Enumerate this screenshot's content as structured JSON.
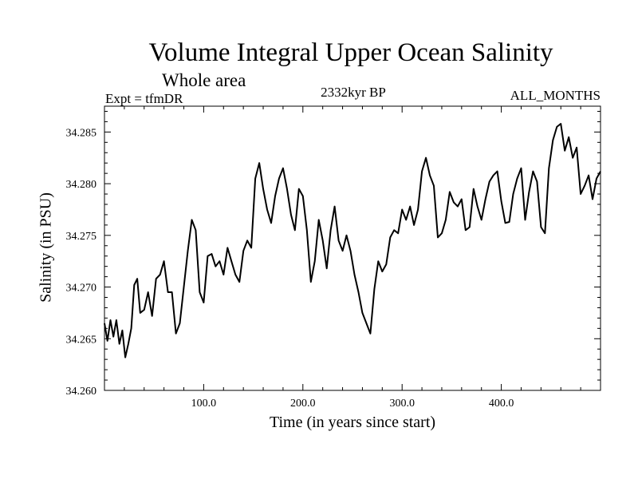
{
  "chart_data": {
    "type": "line",
    "title": "Volume Integral Upper Ocean Salinity",
    "subtitle": "Whole area",
    "expt_label": "Expt = tfmDR",
    "center_label": "2332kyr BP",
    "right_label": "ALL_MONTHS",
    "xlabel": "Time (in years since start)",
    "ylabel": "Salinity (in PSU)",
    "xlim": [
      0,
      500
    ],
    "ylim": [
      34.26,
      34.2875
    ],
    "xticks": [
      100,
      200,
      300,
      400
    ],
    "xtick_labels": [
      "100.0",
      "200.0",
      "300.0",
      "400.0"
    ],
    "yticks": [
      34.26,
      34.265,
      34.27,
      34.275,
      34.28,
      34.285
    ],
    "ytick_labels": [
      "34.260",
      "34.265",
      "34.270",
      "34.275",
      "34.280",
      "34.285"
    ],
    "series": [
      {
        "name": "salinity",
        "x": [
          0,
          3,
          6,
          9,
          12,
          15,
          18,
          21,
          24,
          27,
          30,
          33,
          36,
          40,
          44,
          48,
          52,
          56,
          60,
          64,
          68,
          72,
          76,
          80,
          84,
          88,
          92,
          96,
          100,
          104,
          108,
          112,
          116,
          120,
          124,
          128,
          132,
          136,
          140,
          144,
          148,
          152,
          156,
          160,
          164,
          168,
          172,
          176,
          180,
          184,
          188,
          192,
          196,
          200,
          204,
          208,
          212,
          216,
          220,
          224,
          228,
          232,
          236,
          240,
          244,
          248,
          252,
          256,
          260,
          264,
          268,
          272,
          276,
          280,
          284,
          288,
          292,
          296,
          300,
          304,
          308,
          312,
          316,
          320,
          324,
          328,
          332,
          336,
          340,
          344,
          348,
          352,
          356,
          360,
          364,
          368,
          372,
          376,
          380,
          384,
          388,
          392,
          396,
          400,
          404,
          408,
          412,
          416,
          420,
          424,
          428,
          432,
          436,
          440,
          444,
          448,
          452,
          456,
          460,
          464,
          468,
          472,
          476,
          480,
          484,
          488,
          492,
          496,
          500
        ],
        "values": [
          34.2665,
          34.2648,
          34.2668,
          34.2652,
          34.2668,
          34.2645,
          34.2658,
          34.2632,
          34.2645,
          34.266,
          34.2702,
          34.2708,
          34.2675,
          34.2678,
          34.2695,
          34.2672,
          34.2708,
          34.2712,
          34.2725,
          34.2695,
          34.2695,
          34.2655,
          34.2665,
          34.27,
          34.2735,
          34.2765,
          34.2755,
          34.2695,
          34.2685,
          34.273,
          34.2732,
          34.272,
          34.2725,
          34.2712,
          34.2738,
          34.2725,
          34.2712,
          34.2705,
          34.2735,
          34.2745,
          34.2738,
          34.2805,
          34.282,
          34.2795,
          34.2775,
          34.2762,
          34.2788,
          34.2805,
          34.2815,
          34.2795,
          34.277,
          34.2755,
          34.2795,
          34.2788,
          34.2755,
          34.2705,
          34.2725,
          34.2765,
          34.2745,
          34.2718,
          34.2755,
          34.2778,
          34.2745,
          34.2735,
          34.275,
          34.2735,
          34.2712,
          34.2695,
          34.2675,
          34.2665,
          34.2655,
          34.2698,
          34.2725,
          34.2715,
          34.2722,
          34.2748,
          34.2755,
          34.2752,
          34.2775,
          34.2765,
          34.2778,
          34.276,
          34.2775,
          34.2812,
          34.2825,
          34.2808,
          34.2798,
          34.2748,
          34.2752,
          34.2765,
          34.2792,
          34.2782,
          34.2778,
          34.2785,
          34.2755,
          34.2758,
          34.2795,
          34.2778,
          34.2765,
          34.2785,
          34.2802,
          34.2808,
          34.2812,
          34.2783,
          34.2762,
          34.2763,
          34.279,
          34.2805,
          34.2815,
          34.2765,
          34.2792,
          34.2812,
          34.2802,
          34.2758,
          34.2752,
          34.2815,
          34.2842,
          34.2855,
          34.2858,
          34.2832,
          34.2845,
          34.2825,
          34.2835,
          34.279,
          34.2798,
          34.2808,
          34.2785,
          34.2805,
          34.2812
        ]
      }
    ]
  }
}
